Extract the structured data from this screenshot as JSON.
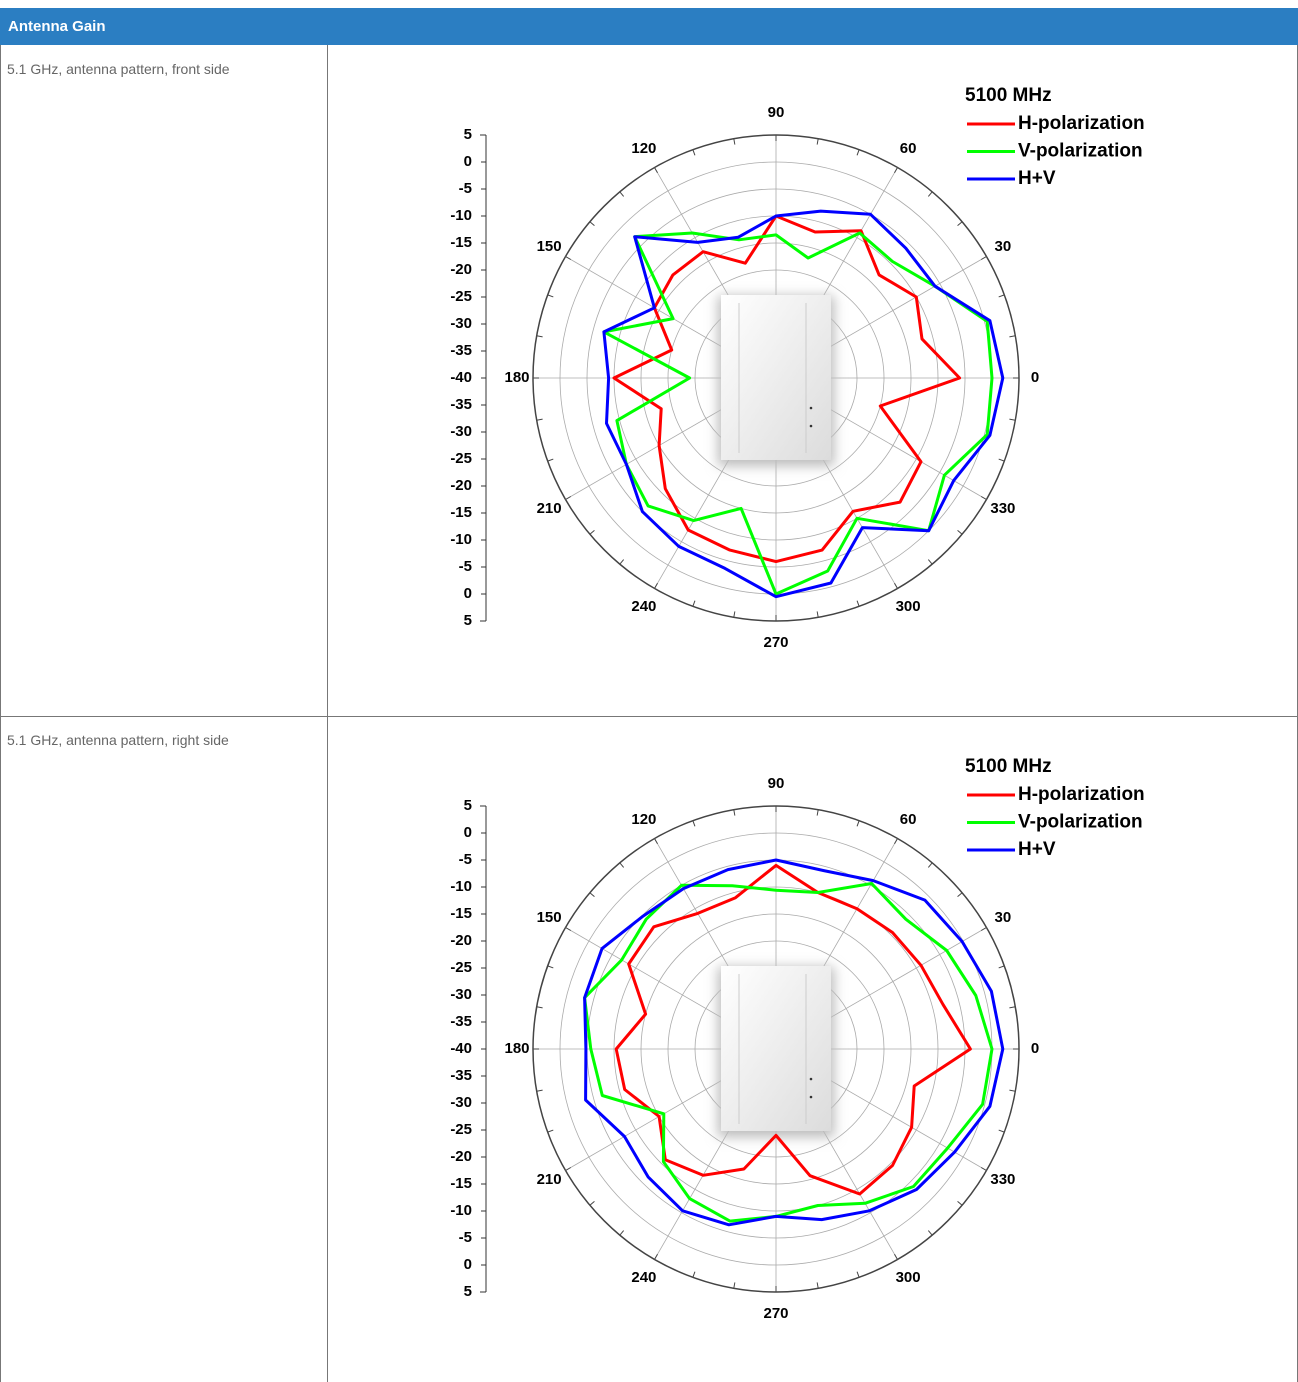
{
  "header": {
    "title": "Antenna Gain"
  },
  "rows": [
    {
      "label": "5.1 GHz, antenna pattern, front side"
    },
    {
      "label": "5.1 GHz, antenna pattern, right side"
    }
  ],
  "chart_data": [
    {
      "type": "polar",
      "legend_title": "5100 MHz",
      "x": [
        0,
        15,
        30,
        45,
        60,
        75,
        90,
        105,
        120,
        135,
        150,
        165,
        180,
        195,
        210,
        225,
        240,
        255,
        270,
        285,
        300,
        315,
        330,
        345
      ],
      "series": [
        {
          "name": "H-polarization",
          "color": "#ff0000",
          "values": [
            -6,
            -12,
            -10,
            -13,
            -8.5,
            -12,
            -10,
            -18,
            -13,
            -13,
            -14,
            -20,
            -10,
            -18,
            -15,
            -11,
            -7.5,
            -7,
            -6,
            -7,
            -11.5,
            -7.5,
            -9,
            -20
          ]
        },
        {
          "name": "V-polarization",
          "color": "#00ff00",
          "values": [
            0,
            0.5,
            -6,
            -9.5,
            -9,
            -17,
            -13.5,
            -13.5,
            -9,
            -3,
            -18,
            -7,
            -24,
            -9.5,
            -8,
            -6.5,
            -9.5,
            -15,
            0,
            -3,
            -10,
            0,
            -4,
            0.5
          ]
        },
        {
          "name": "H+V",
          "color": "#0000ff",
          "values": [
            2,
            1,
            -6,
            -6,
            -5,
            -8,
            -10,
            -13,
            -11,
            -3,
            -14,
            -7,
            -9,
            -7.5,
            -8,
            -5,
            -4,
            -3.5,
            0.5,
            -0.7,
            -8,
            0,
            -2,
            1
          ]
        }
      ],
      "rlim": [
        -40,
        5
      ],
      "rticks": [
        -40,
        -35,
        -30,
        -25,
        -20,
        -15,
        -10,
        -5,
        0,
        5
      ],
      "thetaticks": [
        0,
        30,
        60,
        90,
        120,
        150,
        180,
        210,
        240,
        270,
        300,
        330
      ],
      "grid": true
    },
    {
      "type": "polar",
      "legend_title": "5100 MHz",
      "x": [
        0,
        15,
        30,
        45,
        60,
        75,
        90,
        105,
        120,
        135,
        150,
        165,
        180,
        195,
        210,
        225,
        240,
        255,
        270,
        285,
        300,
        315,
        330,
        345
      ],
      "series": [
        {
          "name": "H-polarization",
          "color": "#ff0000",
          "values": [
            -4,
            -8,
            -9,
            -9.5,
            -10,
            -10,
            -6,
            -11,
            -11,
            -8,
            -8.5,
            -15,
            -10.4,
            -11,
            -15,
            -11,
            -13,
            -17,
            -24,
            -15.7,
            -9,
            -9.5,
            -11,
            -13.5
          ]
        },
        {
          "name": "V-polarization",
          "color": "#00ff00",
          "values": [
            0,
            -1.7,
            -3.5,
            -6,
            -4.6,
            -10,
            -10.6,
            -8.7,
            -5,
            -6,
            -7,
            -3.3,
            -5.7,
            -6.7,
            -16,
            -10.5,
            -8,
            -7,
            -9,
            -10,
            -7,
            -4,
            -3.3,
            -0.4
          ]
        },
        {
          "name": "H+V",
          "color": "#0000ff",
          "values": [
            2,
            1.3,
            -0.2,
            -1,
            -4,
            -5.8,
            -5,
            -5.6,
            -5.7,
            -5.2,
            -2.8,
            -3.3,
            -4.8,
            -3.5,
            -7.6,
            -6.5,
            -5.4,
            -6.3,
            -9,
            -7.3,
            -5.4,
            -3.2,
            -1.8,
            1
          ]
        }
      ],
      "rlim": [
        -40,
        5
      ],
      "rticks": [
        -40,
        -35,
        -30,
        -25,
        -20,
        -15,
        -10,
        -5,
        0,
        5
      ],
      "thetaticks": [
        0,
        30,
        60,
        90,
        120,
        150,
        180,
        210,
        240,
        270,
        300,
        330
      ],
      "grid": true
    }
  ]
}
